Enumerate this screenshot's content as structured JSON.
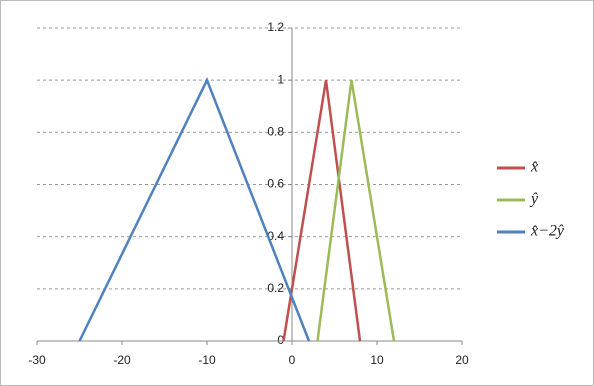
{
  "chart_data": {
    "type": "line",
    "series": [
      {
        "name": "x̂",
        "color": "#c0504d",
        "x": [
          -1,
          4,
          8
        ],
        "values": [
          0,
          1,
          0
        ]
      },
      {
        "name": "ŷ",
        "color": "#9bbb59",
        "x": [
          3,
          7,
          12
        ],
        "values": [
          0,
          1,
          0
        ]
      },
      {
        "name": "x̂−2ŷ",
        "color": "#4f81bd",
        "x": [
          -25,
          -10,
          2
        ],
        "values": [
          0,
          1,
          0
        ]
      }
    ],
    "xlim": [
      -30,
      20
    ],
    "xticks": [
      -30,
      -20,
      -10,
      0,
      10,
      20
    ],
    "ylim": [
      0,
      1.2
    ],
    "yticks": [
      0,
      0.2,
      0.4,
      0.6,
      0.8,
      1,
      1.2
    ],
    "grid": true,
    "legend": "right"
  }
}
